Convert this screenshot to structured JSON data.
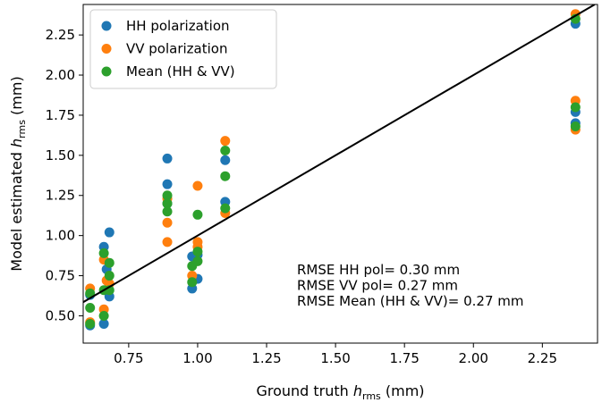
{
  "chart_data": {
    "type": "scatter",
    "xlabel": {
      "main": "Ground truth ",
      "italic": "h",
      "sub": "rms",
      "unit": " (mm)"
    },
    "ylabel": {
      "main": "Model estimated ",
      "italic": "h",
      "sub": "rms",
      "unit": " (mm)"
    },
    "xlim": [
      0.585,
      2.45
    ],
    "ylim": [
      0.33,
      2.44
    ],
    "xticks": [
      0.75,
      1.0,
      1.25,
      1.5,
      1.75,
      2.0,
      2.25
    ],
    "xtick_labels": [
      "0.75",
      "1.00",
      "1.25",
      "1.50",
      "1.75",
      "2.00",
      "2.25"
    ],
    "yticks": [
      0.5,
      0.75,
      1.0,
      1.25,
      1.5,
      1.75,
      2.0,
      2.25
    ],
    "ytick_labels": [
      "0.50",
      "0.75",
      "1.00",
      "1.25",
      "1.50",
      "1.75",
      "2.00",
      "2.25"
    ],
    "grid": false,
    "legend_position": "top-left",
    "reference_line": {
      "from": [
        0.33,
        0.33
      ],
      "to": [
        2.44,
        2.44
      ],
      "color": "#000000"
    },
    "series": [
      {
        "name": "HH polarization",
        "color": "#1f77b4",
        "points": [
          [
            0.61,
            0.44
          ],
          [
            0.61,
            0.63
          ],
          [
            0.66,
            0.45
          ],
          [
            0.66,
            0.93
          ],
          [
            0.67,
            0.79
          ],
          [
            0.68,
            1.02
          ],
          [
            0.68,
            0.62
          ],
          [
            0.89,
            1.48
          ],
          [
            0.89,
            1.32
          ],
          [
            0.89,
            1.2
          ],
          [
            0.98,
            0.87
          ],
          [
            0.98,
            0.67
          ],
          [
            1.0,
            0.73
          ],
          [
            1.0,
            0.88
          ],
          [
            1.1,
            1.47
          ],
          [
            1.1,
            1.21
          ],
          [
            2.37,
            2.32
          ],
          [
            2.37,
            1.77
          ],
          [
            2.37,
            1.7
          ]
        ]
      },
      {
        "name": "VV polarization",
        "color": "#ff7f0e",
        "points": [
          [
            0.61,
            0.67
          ],
          [
            0.61,
            0.46
          ],
          [
            0.66,
            0.54
          ],
          [
            0.66,
            0.85
          ],
          [
            0.67,
            0.72
          ],
          [
            0.68,
            0.7
          ],
          [
            0.89,
            1.23
          ],
          [
            0.89,
            1.08
          ],
          [
            0.89,
            0.96
          ],
          [
            0.98,
            0.75
          ],
          [
            1.0,
            1.31
          ],
          [
            1.0,
            0.96
          ],
          [
            1.0,
            0.93
          ],
          [
            1.1,
            1.59
          ],
          [
            1.1,
            1.14
          ],
          [
            2.37,
            2.38
          ],
          [
            2.37,
            1.84
          ],
          [
            2.37,
            1.66
          ]
        ]
      },
      {
        "name": "Mean (HH & VV)",
        "color": "#2ca02c",
        "points": [
          [
            0.61,
            0.55
          ],
          [
            0.61,
            0.64
          ],
          [
            0.61,
            0.45
          ],
          [
            0.66,
            0.5
          ],
          [
            0.66,
            0.89
          ],
          [
            0.66,
            0.66
          ],
          [
            0.68,
            0.83
          ],
          [
            0.68,
            0.75
          ],
          [
            0.68,
            0.66
          ],
          [
            0.89,
            1.25
          ],
          [
            0.89,
            1.15
          ],
          [
            0.89,
            1.2
          ],
          [
            0.98,
            0.81
          ],
          [
            0.98,
            0.71
          ],
          [
            1.0,
            1.13
          ],
          [
            1.0,
            0.84
          ],
          [
            1.0,
            0.9
          ],
          [
            1.1,
            1.53
          ],
          [
            1.1,
            1.37
          ],
          [
            1.1,
            1.17
          ],
          [
            2.37,
            2.35
          ],
          [
            2.37,
            1.8
          ],
          [
            2.37,
            1.68
          ]
        ]
      }
    ],
    "annotations": [
      "RMSE HH pol= 0.30 mm",
      "RMSE VV pol= 0.27 mm",
      "RMSE Mean (HH & VV)= 0.27 mm"
    ]
  }
}
